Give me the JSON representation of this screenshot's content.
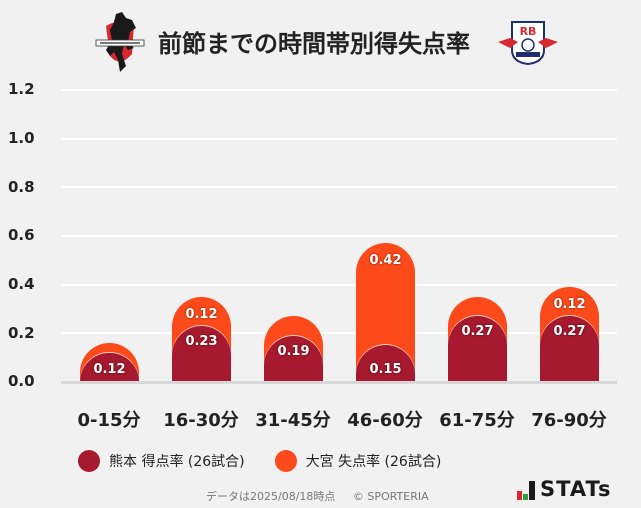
{
  "header": {
    "title": "前節までの時間帯別得失点率",
    "home_logo": "roasso-kumamoto-crest-icon",
    "away_logo": "rb-omiya-ardija-crest-icon"
  },
  "chart_data": {
    "type": "bar",
    "stacked": true,
    "title": "前節までの時間帯別得失点率",
    "xlabel": "",
    "ylabel": "",
    "ylim": [
      0,
      1.2
    ],
    "yticks": [
      "1.2",
      "1.0",
      "0.8",
      "0.6",
      "0.4",
      "0.2",
      "0.0"
    ],
    "grid": true,
    "legend_position": "bottom",
    "categories": [
      "0-15分",
      "16-30分",
      "31-45分",
      "46-60分",
      "61-75分",
      "76-90分"
    ],
    "series": [
      {
        "name": "熊本 得点率 (26試合)",
        "color": "#a6192e",
        "values": [
          0.12,
          0.23,
          0.19,
          0.15,
          0.27,
          0.27
        ],
        "labels": [
          "0.12",
          "0.23",
          "0.19",
          "0.15",
          "0.27",
          "0.27"
        ]
      },
      {
        "name": "大宮 失点率 (26試合)",
        "color": "#fc4a1a",
        "values": [
          0.04,
          0.12,
          0.08,
          0.42,
          0.08,
          0.12
        ],
        "labels": [
          "",
          "0.12",
          "",
          "0.42",
          "",
          "0.12"
        ]
      }
    ]
  },
  "legend": {
    "items": [
      {
        "label": "熊本 得点率 (26試合)",
        "color": "#a6192e"
      },
      {
        "label": "大宮 失点率 (26試合)",
        "color": "#fc4a1a"
      }
    ]
  },
  "footer": {
    "date_note": "データは2025/08/18時点",
    "copyright": "© SPORTERIA",
    "brand": "STATs",
    "brand_bar_colors": [
      "#d7282f",
      "#2e9b3e",
      "#1a1a1a"
    ]
  }
}
